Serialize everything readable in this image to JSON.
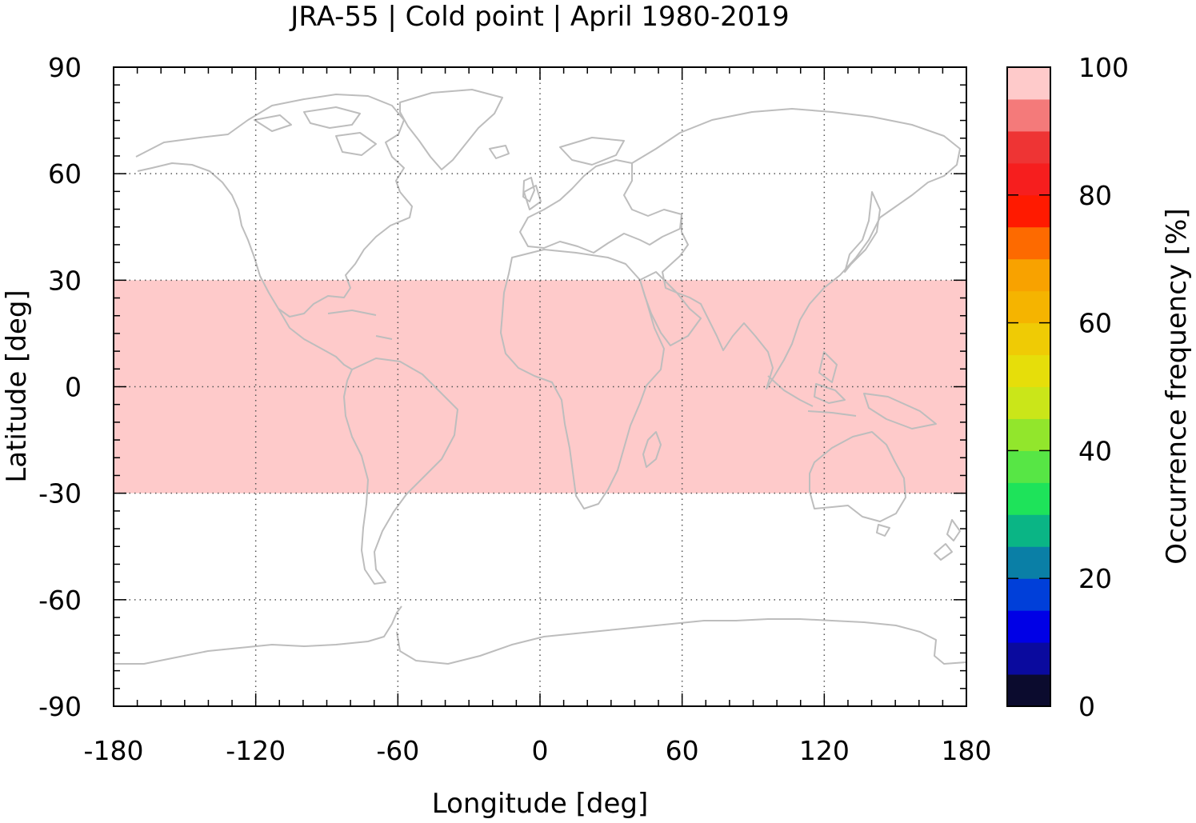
{
  "chart_data": {
    "type": "heatmap",
    "title": "JRA-55 | Cold point | April 1980-2019",
    "xlabel": "Longitude [deg]",
    "ylabel": "Latitude [deg]",
    "xlim": [
      -180,
      180
    ],
    "ylim": [
      -90,
      90
    ],
    "x_ticks": [
      -180,
      -120,
      -60,
      0,
      60,
      120,
      180
    ],
    "y_ticks": [
      -90,
      -60,
      -30,
      0,
      30,
      60,
      90
    ],
    "grid": true,
    "grid_style": "dotted",
    "background_map": "coastlines",
    "coastline_color": "#bdbdbd",
    "regions": [
      {
        "lon_range": [
          -180,
          180
        ],
        "lat_range": [
          -30,
          30
        ],
        "value": 100
      }
    ],
    "colorbar": {
      "label": "Occurrence frequency [%]",
      "range": [
        0,
        100
      ],
      "ticks": [
        0,
        20,
        40,
        60,
        80,
        100
      ],
      "bins": [
        {
          "from": 0,
          "to": 5,
          "color": "#0b0b2e"
        },
        {
          "from": 5,
          "to": 10,
          "color": "#0a0a9e"
        },
        {
          "from": 10,
          "to": 15,
          "color": "#0000e6"
        },
        {
          "from": 15,
          "to": 20,
          "color": "#003fd9"
        },
        {
          "from": 20,
          "to": 25,
          "color": "#0a7fa6"
        },
        {
          "from": 25,
          "to": 30,
          "color": "#0ab585"
        },
        {
          "from": 30,
          "to": 35,
          "color": "#1ee35a"
        },
        {
          "from": 35,
          "to": 40,
          "color": "#57e645"
        },
        {
          "from": 40,
          "to": 45,
          "color": "#92e62c"
        },
        {
          "from": 45,
          "to": 50,
          "color": "#cae619"
        },
        {
          "from": 50,
          "to": 55,
          "color": "#e6de0a"
        },
        {
          "from": 55,
          "to": 60,
          "color": "#efcb05"
        },
        {
          "from": 60,
          "to": 65,
          "color": "#f5b400"
        },
        {
          "from": 65,
          "to": 70,
          "color": "#f8a200"
        },
        {
          "from": 70,
          "to": 75,
          "color": "#fd6a00"
        },
        {
          "from": 75,
          "to": 80,
          "color": "#ff1a00"
        },
        {
          "from": 80,
          "to": 85,
          "color": "#f61e1e"
        },
        {
          "from": 85,
          "to": 90,
          "color": "#ee3434"
        },
        {
          "from": 90,
          "to": 95,
          "color": "#f47a7a"
        },
        {
          "from": 95,
          "to": 100,
          "color": "#fecaca"
        }
      ]
    }
  }
}
